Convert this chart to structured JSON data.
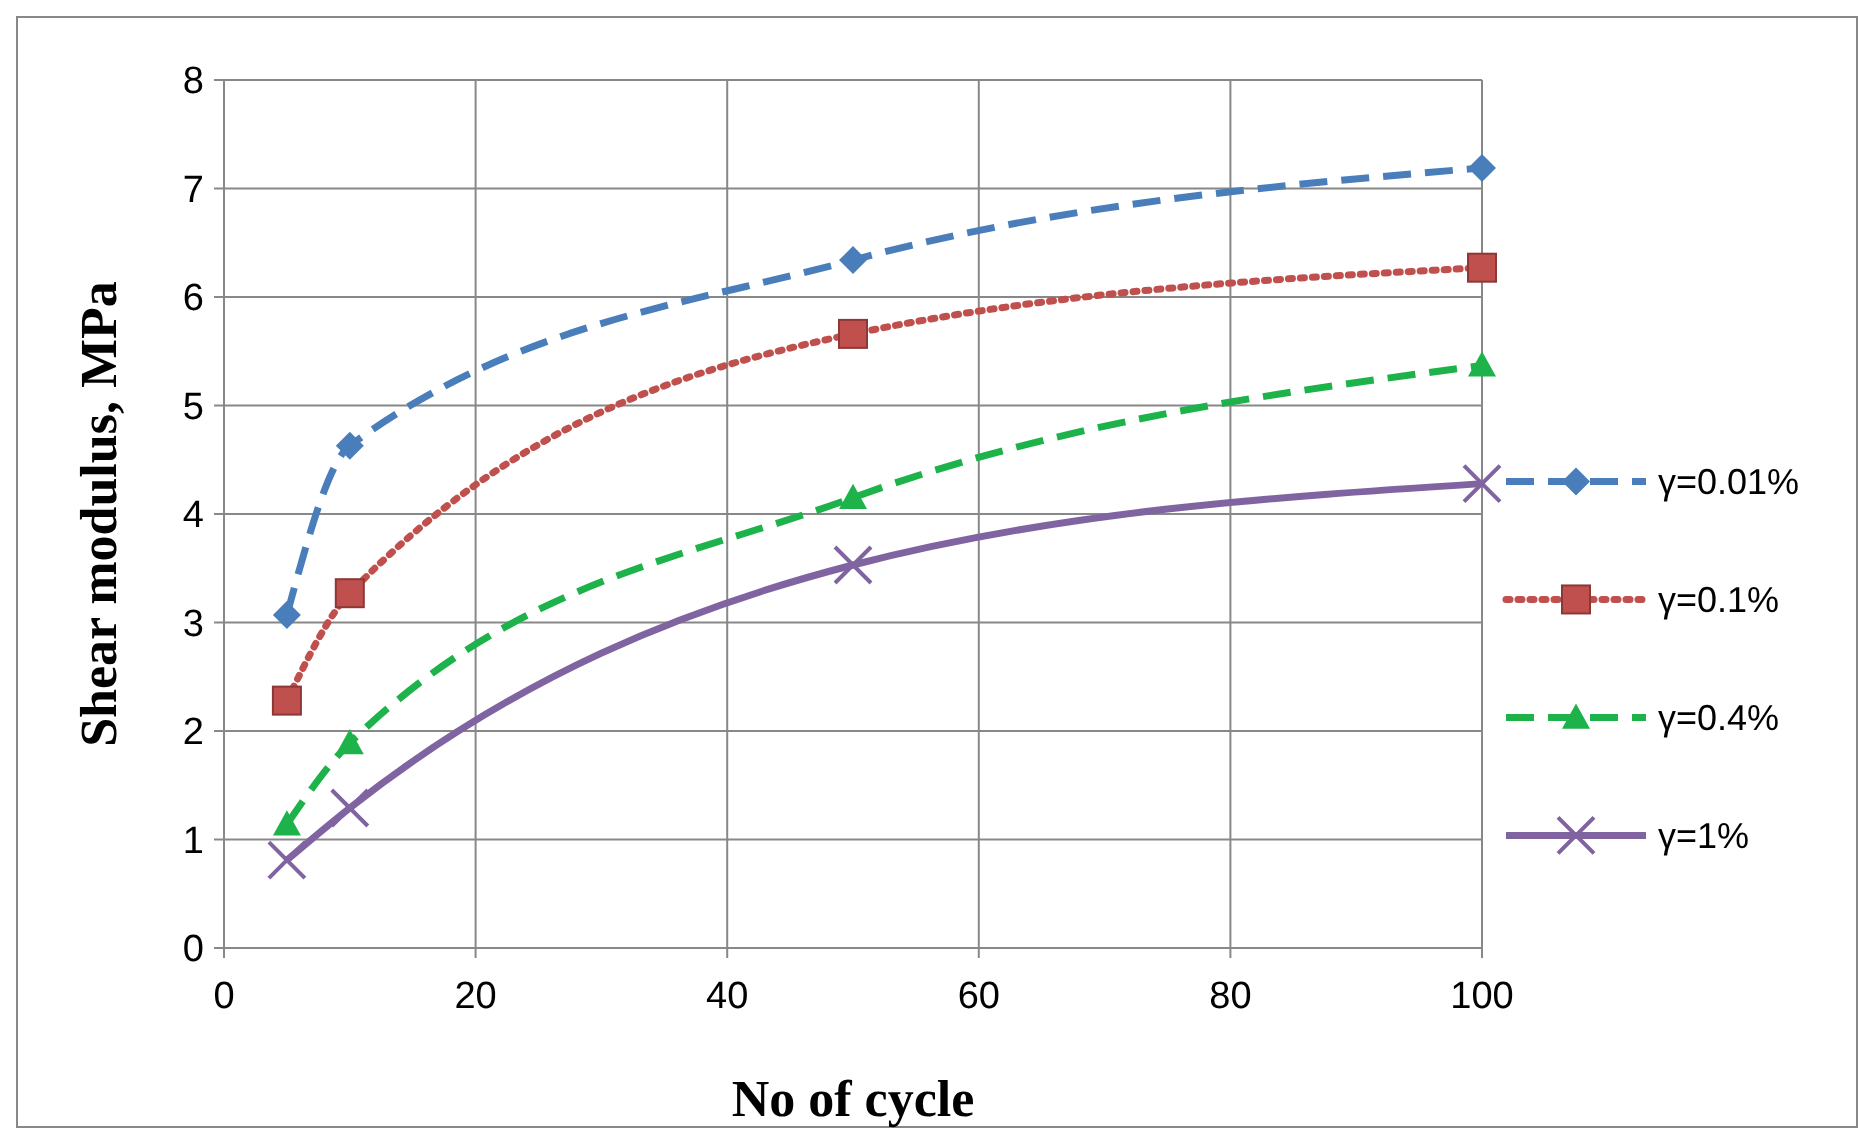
{
  "chart_data": {
    "type": "line",
    "xlabel": "No of cycle",
    "ylabel": "Shear modulus, MPa",
    "x": [
      5,
      10,
      50,
      100
    ],
    "xlim": [
      0,
      100
    ],
    "xticks": [
      0,
      20,
      40,
      60,
      80,
      100
    ],
    "ylim": [
      0,
      8
    ],
    "yticks": [
      0,
      1,
      2,
      3,
      4,
      5,
      6,
      7,
      8
    ],
    "grid": true,
    "legend": "right",
    "series": [
      {
        "name": "γ=0.01%",
        "color": "#4a7ebb",
        "values": [
          3.07,
          4.63,
          6.34,
          7.19
        ],
        "marker": "diamond",
        "line_style": "dashed"
      },
      {
        "name": "γ=0.1%",
        "color": "#c0504d",
        "values": [
          2.28,
          3.27,
          5.66,
          6.27
        ],
        "marker": "square",
        "line_style": "dotted"
      },
      {
        "name": "γ=0.4%",
        "color": "#1db34a",
        "values": [
          1.14,
          1.89,
          4.15,
          5.37
        ],
        "marker": "triangle",
        "line_style": "dashed"
      },
      {
        "name": "γ=1%",
        "color": "#8064a2",
        "values": [
          0.81,
          1.29,
          3.53,
          4.28
        ],
        "marker": "cross",
        "line_style": "solid"
      }
    ]
  }
}
